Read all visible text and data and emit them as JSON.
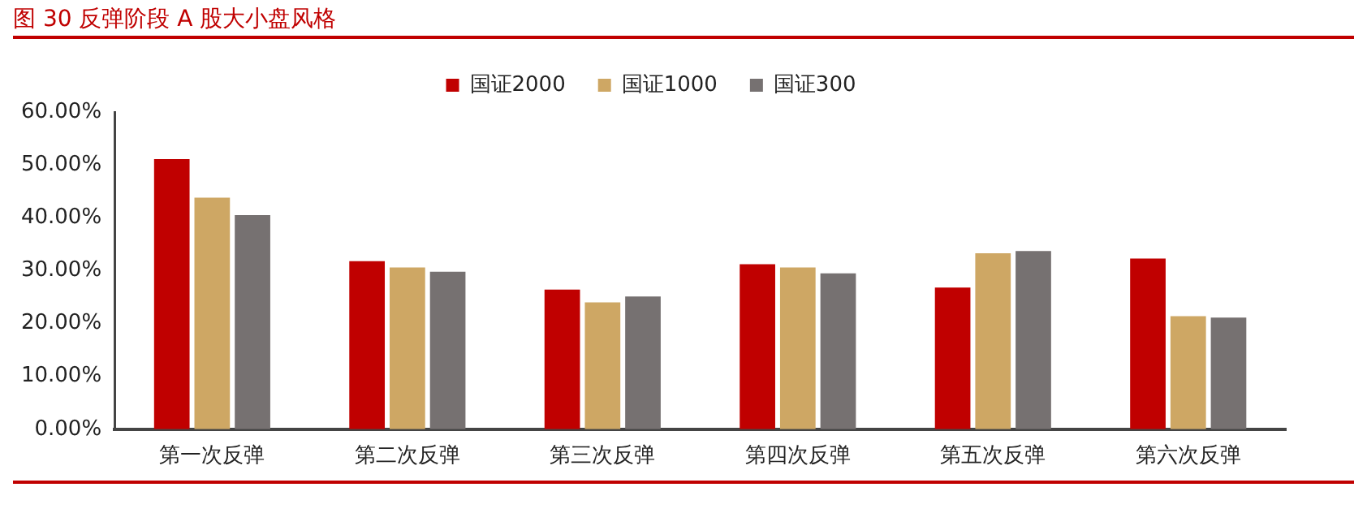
{
  "chart_data": {
    "type": "bar",
    "title": "图 30 反弹阶段 A 股大小盘风格",
    "categories": [
      "第一次反弹",
      "第二次反弹",
      "第三次反弹",
      "第四次反弹",
      "第五次反弹",
      "第六次反弹"
    ],
    "series": [
      {
        "name": "国证2000",
        "color": "#c00000",
        "values": [
          51.1,
          31.8,
          26.4,
          31.2,
          26.8,
          32.3
        ]
      },
      {
        "name": "国证1000",
        "color": "#cea764",
        "values": [
          43.8,
          30.6,
          24.0,
          30.6,
          33.3,
          21.4
        ]
      },
      {
        "name": "国证300",
        "color": "#767171",
        "values": [
          40.5,
          29.8,
          25.1,
          29.5,
          33.7,
          21.1
        ]
      }
    ],
    "ylim": [
      0,
      60
    ],
    "yticks": [
      {
        "value": 0,
        "label": "0.00%"
      },
      {
        "value": 10,
        "label": "10.00%"
      },
      {
        "value": 20,
        "label": "20.00%"
      },
      {
        "value": 30,
        "label": "30.00%"
      },
      {
        "value": 40,
        "label": "40.00%"
      },
      {
        "value": 50,
        "label": "50.00%"
      },
      {
        "value": 60,
        "label": "60.00%"
      }
    ],
    "grid": false,
    "legend": "top"
  }
}
